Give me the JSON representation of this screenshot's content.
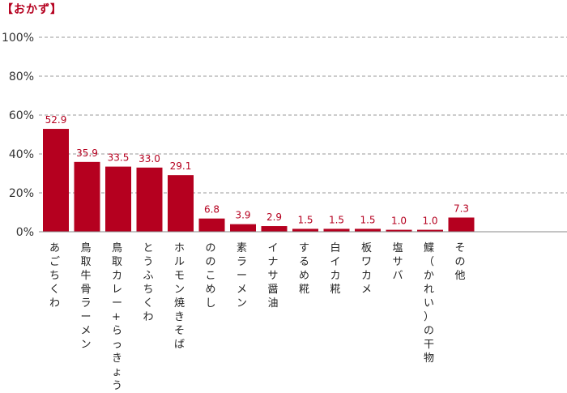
{
  "chart_data": {
    "type": "bar",
    "title": "【おかず】",
    "categories": [
      "あごちくわ",
      "鳥取牛骨ラーメン",
      "鳥取カレー+らっきょう",
      "とうふちくわ",
      "ホルモン焼きそば",
      "ののこめし",
      "素ラーメン",
      "イナサ醤油",
      "するめ糀",
      "白イカ糀",
      "板ワカメ",
      "塩サバ",
      "鰈（かれい）の干物",
      "その他"
    ],
    "values": [
      52.9,
      35.9,
      33.5,
      33.0,
      29.1,
      6.8,
      3.9,
      2.9,
      1.5,
      1.5,
      1.5,
      1.0,
      1.0,
      7.3
    ],
    "data_labels": [
      "52.9",
      "35.9",
      "33.5",
      "33.0",
      "29.1",
      "6.8",
      "3.9",
      "2.9",
      "1.5",
      "1.5",
      "1.5",
      "1.0",
      "1.0",
      "7.3"
    ],
    "y_ticks": [
      "0%",
      "20%",
      "40%",
      "60%",
      "80%",
      "100%"
    ],
    "y_tick_values": [
      0,
      20,
      40,
      60,
      80,
      100
    ],
    "ylim": [
      0,
      100
    ],
    "grid": "horizontal-dashed",
    "bar_color": "#b5001f",
    "label_color": "#b5001f",
    "title_color": "#b5001f"
  }
}
